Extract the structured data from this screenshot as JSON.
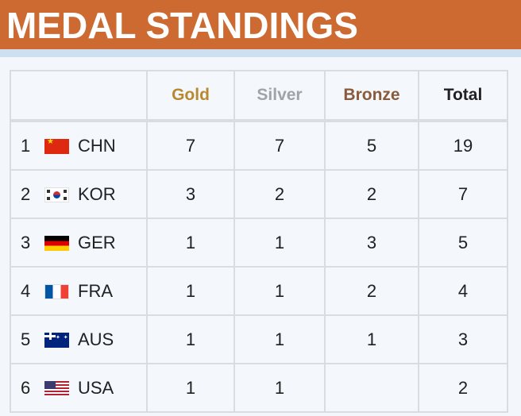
{
  "page": {
    "title": "MEDAL STANDINGS"
  },
  "table": {
    "headers": {
      "gold": "Gold",
      "silver": "Silver",
      "bronze": "Bronze",
      "total": "Total"
    },
    "header_colors": {
      "gold": "#b9892f",
      "silver": "#a0a4a8",
      "bronze": "#8a5a3c",
      "total": "#202122"
    },
    "rows": [
      {
        "rank": "1",
        "nation": "CHN",
        "flag_icon": "china-flag-icon",
        "gold": "7",
        "silver": "7",
        "bronze": "5",
        "total": "19"
      },
      {
        "rank": "2",
        "nation": "KOR",
        "flag_icon": "south-korea-flag-icon",
        "gold": "3",
        "silver": "2",
        "bronze": "2",
        "total": "7"
      },
      {
        "rank": "3",
        "nation": "GER",
        "flag_icon": "germany-flag-icon",
        "gold": "1",
        "silver": "1",
        "bronze": "3",
        "total": "5"
      },
      {
        "rank": "4",
        "nation": "FRA",
        "flag_icon": "france-flag-icon",
        "gold": "1",
        "silver": "1",
        "bronze": "2",
        "total": "4"
      },
      {
        "rank": "5",
        "nation": "AUS",
        "flag_icon": "australia-flag-icon",
        "gold": "1",
        "silver": "1",
        "bronze": "1",
        "total": "3"
      },
      {
        "rank": "6",
        "nation": "USA",
        "flag_icon": "usa-flag-icon",
        "gold": "1",
        "silver": "1",
        "bronze": "",
        "total": "2"
      }
    ]
  },
  "colors": {
    "banner": "#cc6a32",
    "banner_text": "#ffffff",
    "strip": "#cddff0",
    "panel": "#f3f6fa",
    "grid": "#d8dde3"
  }
}
